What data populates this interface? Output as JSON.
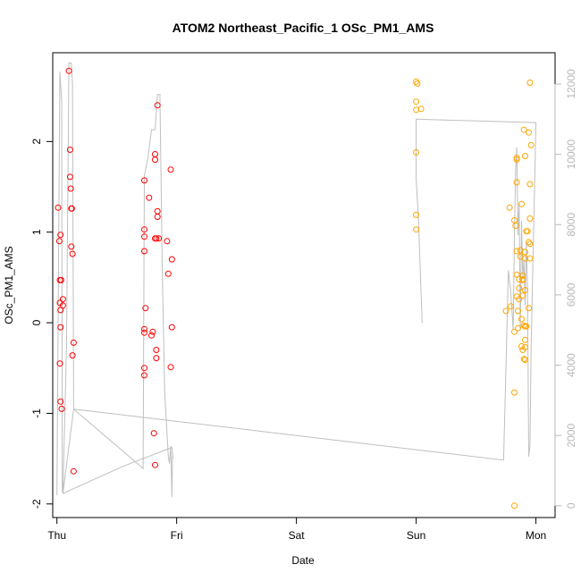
{
  "chart_data": {
    "type": "scatter",
    "title": "ATOM2 Northeast_Pacific_1 OSc_PM1_AMS",
    "xlabel": "Date",
    "ylabel": "OSc_PM1_AMS",
    "x_ticks": [
      "Thu",
      "Fri",
      "Sat",
      "Sun",
      "Mon"
    ],
    "xlim": [
      -0.035,
      4.16
    ],
    "ylim": [
      -2.15,
      2.98
    ],
    "y_ticks": [
      -2,
      -1,
      0,
      1,
      2
    ],
    "y2_ticks": [
      0,
      2000,
      4000,
      6000,
      8000,
      10000,
      12000
    ],
    "y2lim": [
      -335,
      12890
    ],
    "grid": false,
    "colors": {
      "red": "#ff0000",
      "orange": "#ffa500",
      "line": "#bfbfbf",
      "axis": "#000000",
      "axis2": "#b8b8b8"
    },
    "series": [
      {
        "color": "red",
        "points": [
          [
            0.01,
            1.27
          ],
          [
            0.02,
            0.9
          ],
          [
            0.025,
            0.47
          ],
          [
            0.025,
            0.22
          ],
          [
            0.03,
            0.14
          ],
          [
            0.03,
            -0.05
          ],
          [
            0.025,
            -0.45
          ],
          [
            0.03,
            -0.87
          ],
          [
            0.03,
            0.97
          ],
          [
            0.035,
            0.47
          ],
          [
            0.04,
            -0.95
          ],
          [
            0.05,
            0.26
          ],
          [
            0.05,
            0.19
          ],
          [
            0.1,
            2.78
          ],
          [
            0.11,
            1.91
          ],
          [
            0.11,
            1.61
          ],
          [
            0.115,
            1.48
          ],
          [
            0.12,
            1.26
          ],
          [
            0.125,
            1.26
          ],
          [
            0.12,
            0.84
          ],
          [
            0.13,
            0.76
          ],
          [
            0.14,
            -0.22
          ],
          [
            0.13,
            -0.36
          ],
          [
            0.14,
            -1.64
          ],
          [
            0.73,
            1.57
          ],
          [
            0.73,
            1.03
          ],
          [
            0.73,
            0.95
          ],
          [
            0.73,
            0.79
          ],
          [
            0.74,
            0.16
          ],
          [
            0.73,
            -0.07
          ],
          [
            0.73,
            -0.11
          ],
          [
            0.73,
            -0.5
          ],
          [
            0.73,
            -0.58
          ],
          [
            0.77,
            1.38
          ],
          [
            0.79,
            -0.14
          ],
          [
            0.8,
            -0.1
          ],
          [
            0.82,
            1.86
          ],
          [
            0.82,
            1.8
          ],
          [
            0.82,
            0.93
          ],
          [
            0.83,
            0.93
          ],
          [
            0.83,
            -0.3
          ],
          [
            0.83,
            -0.39
          ],
          [
            0.84,
            2.4
          ],
          [
            0.84,
            1.23
          ],
          [
            0.84,
            1.17
          ],
          [
            0.85,
            0.93
          ],
          [
            0.81,
            -1.22
          ],
          [
            0.82,
            -1.57
          ],
          [
            0.92,
            0.9
          ],
          [
            0.93,
            0.54
          ],
          [
            0.95,
            1.69
          ],
          [
            0.96,
            0.7
          ],
          [
            0.96,
            -0.05
          ],
          [
            0.95,
            -0.49
          ]
        ]
      },
      {
        "color": "orange",
        "points": [
          [
            3.0,
            2.66
          ],
          [
            3.01,
            2.64
          ],
          [
            3.0,
            2.44
          ],
          [
            3.0,
            2.35
          ],
          [
            3.04,
            2.36
          ],
          [
            3.0,
            1.88
          ],
          [
            3.0,
            1.19
          ],
          [
            3.0,
            1.03
          ],
          [
            3.75,
            0.13
          ],
          [
            3.78,
            1.27
          ],
          [
            3.79,
            0.18
          ],
          [
            3.82,
            1.13
          ],
          [
            3.83,
            1.07
          ],
          [
            3.82,
            -0.1
          ],
          [
            3.82,
            -0.77
          ],
          [
            3.82,
            -2.02
          ],
          [
            3.84,
            1.82
          ],
          [
            3.84,
            1.8
          ],
          [
            3.84,
            1.55
          ],
          [
            3.84,
            0.79
          ],
          [
            3.84,
            0.53
          ],
          [
            3.84,
            0.29
          ],
          [
            3.85,
            0.13
          ],
          [
            3.85,
            -0.06
          ],
          [
            3.86,
            0.48
          ],
          [
            3.86,
            0.38
          ],
          [
            3.86,
            0.26
          ],
          [
            3.87,
            0.8
          ],
          [
            3.87,
            0.73
          ],
          [
            3.88,
            1.31
          ],
          [
            3.88,
            0.04
          ],
          [
            3.88,
            -0.26
          ],
          [
            3.89,
            0.52
          ],
          [
            3.89,
            0.48
          ],
          [
            3.89,
            0.47
          ],
          [
            3.89,
            0.3
          ],
          [
            3.89,
            -0.3
          ],
          [
            3.9,
            2.13
          ],
          [
            3.9,
            -0.03
          ],
          [
            3.9,
            -0.4
          ],
          [
            3.91,
            1.84
          ],
          [
            3.91,
            0.78
          ],
          [
            3.91,
            0.71
          ],
          [
            3.91,
            0.36
          ],
          [
            3.91,
            -0.04
          ],
          [
            3.91,
            -0.19
          ],
          [
            3.91,
            -0.27
          ],
          [
            3.91,
            -0.41
          ],
          [
            3.92,
            1.01
          ],
          [
            3.93,
            1.01
          ],
          [
            3.92,
            -0.04
          ],
          [
            3.94,
            2.1
          ],
          [
            3.94,
            0.89
          ],
          [
            3.94,
            0.16
          ],
          [
            3.95,
            1.53
          ],
          [
            3.95,
            1.15
          ],
          [
            3.95,
            0.87
          ],
          [
            3.95,
            0.71
          ],
          [
            3.95,
            2.65
          ],
          [
            3.96,
            1.96
          ]
        ]
      }
    ],
    "right_axis_line": [
      [
        0.0,
        300
      ],
      [
        0.025,
        12350
      ],
      [
        0.04,
        11500
      ],
      [
        0.045,
        400
      ],
      [
        0.05,
        380
      ],
      [
        0.08,
        4500
      ],
      [
        0.1,
        12600
      ],
      [
        0.12,
        12600
      ],
      [
        0.13,
        12000
      ],
      [
        0.14,
        2750
      ],
      [
        0.72,
        1060
      ],
      [
        0.73,
        9400
      ],
      [
        0.76,
        9900
      ],
      [
        0.79,
        10700
      ],
      [
        0.82,
        10700
      ],
      [
        0.84,
        11700
      ],
      [
        0.86,
        11700
      ],
      [
        0.88,
        6600
      ],
      [
        0.9,
        3200
      ],
      [
        0.93,
        1400
      ],
      [
        0.94,
        1200
      ],
      [
        0.95,
        1700
      ],
      [
        0.96,
        240
      ],
      [
        0.965,
        1400
      ],
      [
        0.97,
        1350
      ],
      [
        0.96,
        1660
      ],
      [
        0.55,
        1120
      ],
      [
        0.05,
        350
      ],
      [
        0.14,
        2750
      ],
      [
        3.73,
        1300
      ],
      [
        3.77,
        6700
      ],
      [
        3.79,
        6100
      ],
      [
        3.81,
        5000
      ],
      [
        3.82,
        7600
      ],
      [
        3.83,
        9500
      ],
      [
        3.84,
        10200
      ],
      [
        3.85,
        7700
      ],
      [
        3.86,
        8600
      ],
      [
        3.87,
        5000
      ],
      [
        3.88,
        8100
      ],
      [
        3.89,
        6500
      ],
      [
        3.9,
        7000
      ],
      [
        3.91,
        5700
      ],
      [
        3.92,
        7500
      ],
      [
        3.93,
        6100
      ],
      [
        3.94,
        1400
      ],
      [
        3.95,
        1700
      ],
      [
        3.96,
        4500
      ],
      [
        4.0,
        10900
      ],
      [
        3.0,
        11000
      ],
      [
        3.0,
        9300
      ],
      [
        3.02,
        8100
      ],
      [
        3.04,
        6100
      ],
      [
        3.05,
        5200
      ]
    ]
  }
}
